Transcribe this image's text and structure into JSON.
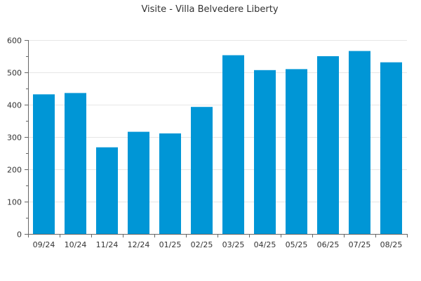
{
  "chart_data": {
    "type": "bar",
    "title": "Visite - Villa Belvedere Liberty",
    "xlabel": "",
    "ylabel": "",
    "categories": [
      "09/24",
      "10/24",
      "11/24",
      "12/24",
      "01/25",
      "02/25",
      "03/25",
      "04/25",
      "05/25",
      "06/25",
      "07/25",
      "08/25"
    ],
    "values": [
      432,
      436,
      268,
      316,
      311,
      393,
      553,
      507,
      510,
      550,
      566,
      531
    ],
    "ylim": [
      0,
      600
    ],
    "yticks": [
      0,
      100,
      200,
      300,
      400,
      500,
      600
    ],
    "grid": true,
    "bar_color": "#0096d6"
  }
}
